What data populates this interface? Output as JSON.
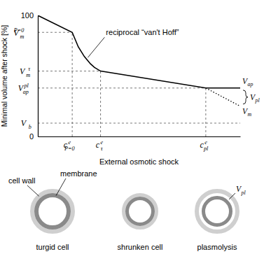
{
  "chart_data": {
    "type": "line",
    "xlabel": "External osmotic shock",
    "ylabel": "Minimal volume after shock [%]",
    "xlim": [
      0,
      100
    ],
    "ylim": [
      0,
      100
    ],
    "xticks": [
      {
        "value": 17,
        "label": "c",
        "sup": "e",
        "sub": "P=0"
      },
      {
        "value": 31,
        "label": "c",
        "sup": "e",
        "sub": "τ"
      },
      {
        "value": 83,
        "label": "c",
        "sup": "e",
        "sub": "pl"
      }
    ],
    "yticks": [
      0,
      {
        "value": 11,
        "label": "V",
        "sub": "b"
      },
      {
        "value": 40,
        "label": "V",
        "sub": "ap",
        "sup": "pl"
      },
      {
        "value": 54,
        "label": "V",
        "sub": "m",
        "sup": "τ"
      },
      {
        "value": 86,
        "label": "V",
        "sub": "m",
        "sup": "P=0"
      },
      100
    ],
    "grid": false,
    "series": [
      {
        "x": [
          0,
          17,
          20,
          23,
          26,
          28,
          31,
          83,
          100
        ],
        "values": [
          100,
          86,
          74,
          66,
          60,
          57,
          54,
          40,
          40
        ],
        "color": "#000000",
        "line_style": "solid",
        "end_label": {
          "text": "V",
          "sub": "ap"
        }
      },
      {
        "x": [
          83,
          100
        ],
        "values": [
          40,
          25
        ],
        "color": "#000000",
        "line_style": "dotted",
        "end_label": {
          "text": "V",
          "sub": "m"
        }
      }
    ],
    "gap_label": {
      "text": "V",
      "sub": "pl"
    },
    "annotations": [
      {
        "text": "reciprocal “van't Hoff”",
        "x": 24,
        "y": 64
      }
    ]
  },
  "illustration": {
    "parts": [
      {
        "text": "cell wall"
      },
      {
        "text": "membrane"
      }
    ],
    "cells": [
      {
        "label": "turgid cell"
      },
      {
        "label": "shrunken cell"
      },
      {
        "label": "plasmolysis",
        "inner_label": {
          "text": "V",
          "sub": "pl"
        }
      }
    ]
  }
}
